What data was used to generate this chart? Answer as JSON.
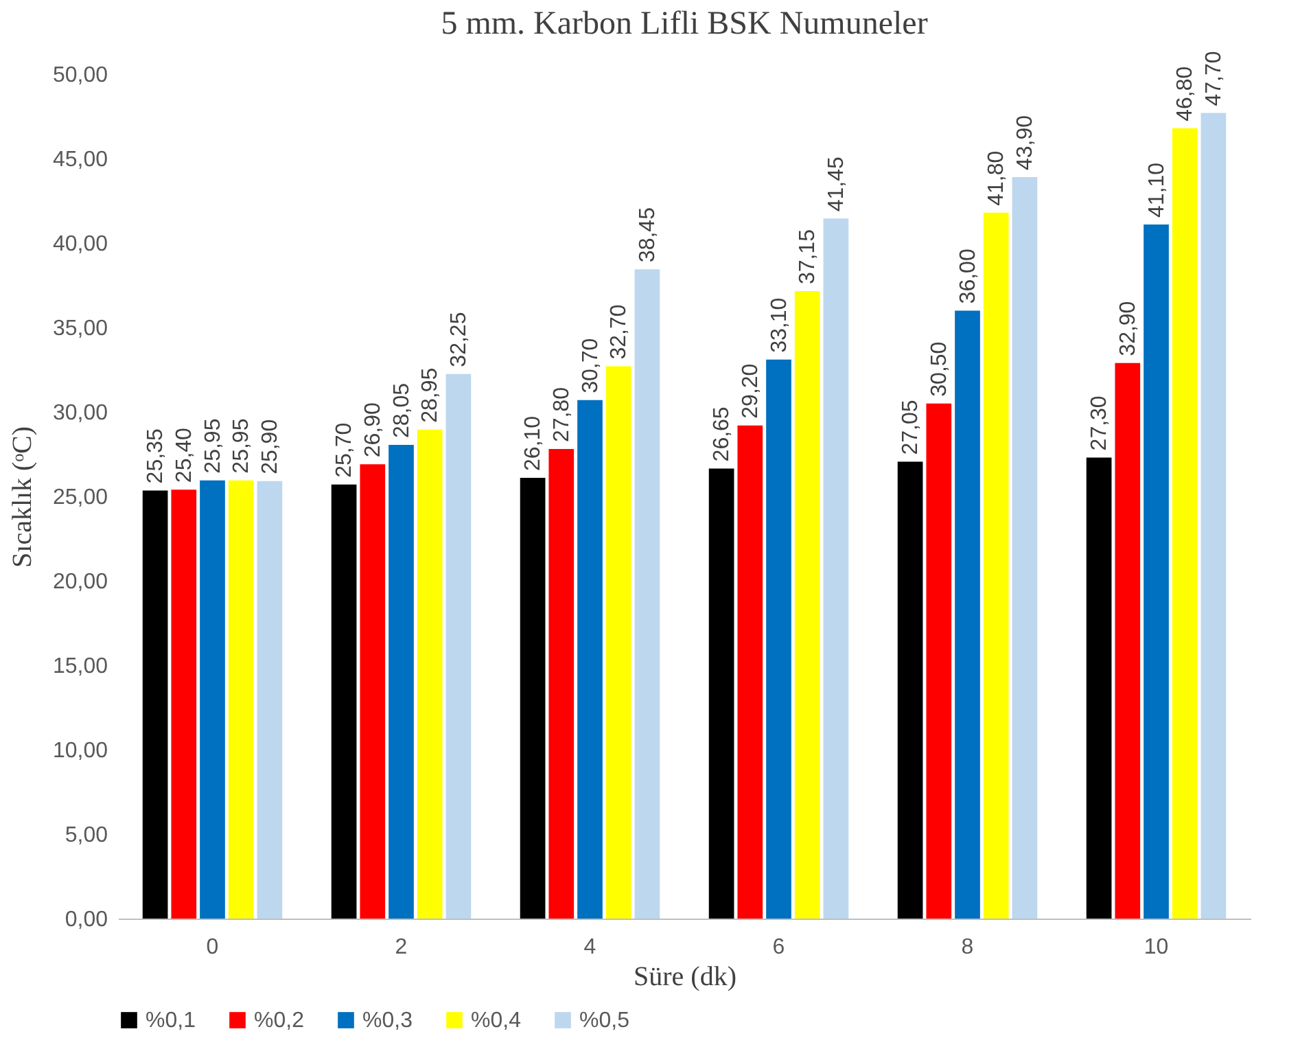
{
  "chart_data": {
    "type": "bar",
    "title": "5 mm. Karbon Lifli BSK Numuneler",
    "xlabel": "Süre (dk)",
    "ylabel": "Sıcaklık (ᵒC)",
    "categories": [
      "0",
      "2",
      "4",
      "6",
      "8",
      "10"
    ],
    "series": [
      {
        "name": "%0,1",
        "color": "#000000",
        "values": [
          25.35,
          25.7,
          26.1,
          26.65,
          27.05,
          27.3
        ],
        "value_labels": [
          "25,35",
          "25,70",
          "26,10",
          "26,65",
          "27,05",
          "27,30"
        ]
      },
      {
        "name": "%0,2",
        "color": "#ff0000",
        "values": [
          25.4,
          26.9,
          27.8,
          29.2,
          30.5,
          32.9
        ],
        "value_labels": [
          "25,40",
          "26,90",
          "27,80",
          "29,20",
          "30,50",
          "32,90"
        ]
      },
      {
        "name": "%0,3",
        "color": "#0070c0",
        "values": [
          25.95,
          28.05,
          30.7,
          33.1,
          36.0,
          41.1
        ],
        "value_labels": [
          "25,95",
          "28,05",
          "30,70",
          "33,10",
          "36,00",
          "41,10"
        ]
      },
      {
        "name": "%0,4",
        "color": "#ffff00",
        "values": [
          25.95,
          28.95,
          32.7,
          37.15,
          41.8,
          46.8
        ],
        "value_labels": [
          "25,95",
          "28,95",
          "32,70",
          "37,15",
          "41,80",
          "46,80"
        ]
      },
      {
        "name": "%0,5",
        "color": "#bdd7ee",
        "values": [
          25.9,
          32.25,
          38.45,
          41.45,
          43.9,
          47.7
        ],
        "value_labels": [
          "25,90",
          "32,25",
          "38,45",
          "41,45",
          "43,90",
          "47,70"
        ]
      }
    ],
    "ylim": [
      0,
      50
    ],
    "yticks": [
      {
        "value": 0,
        "label": "0,00"
      },
      {
        "value": 5,
        "label": "5,00"
      },
      {
        "value": 10,
        "label": "10,00"
      },
      {
        "value": 15,
        "label": "15,00"
      },
      {
        "value": 20,
        "label": "20,00"
      },
      {
        "value": 25,
        "label": "25,00"
      },
      {
        "value": 30,
        "label": "30,00"
      },
      {
        "value": 35,
        "label": "35,00"
      },
      {
        "value": 40,
        "label": "40,00"
      },
      {
        "value": 45,
        "label": "45,00"
      },
      {
        "value": 50,
        "label": "50,00"
      }
    ],
    "grid": false,
    "legend": "bottom"
  }
}
